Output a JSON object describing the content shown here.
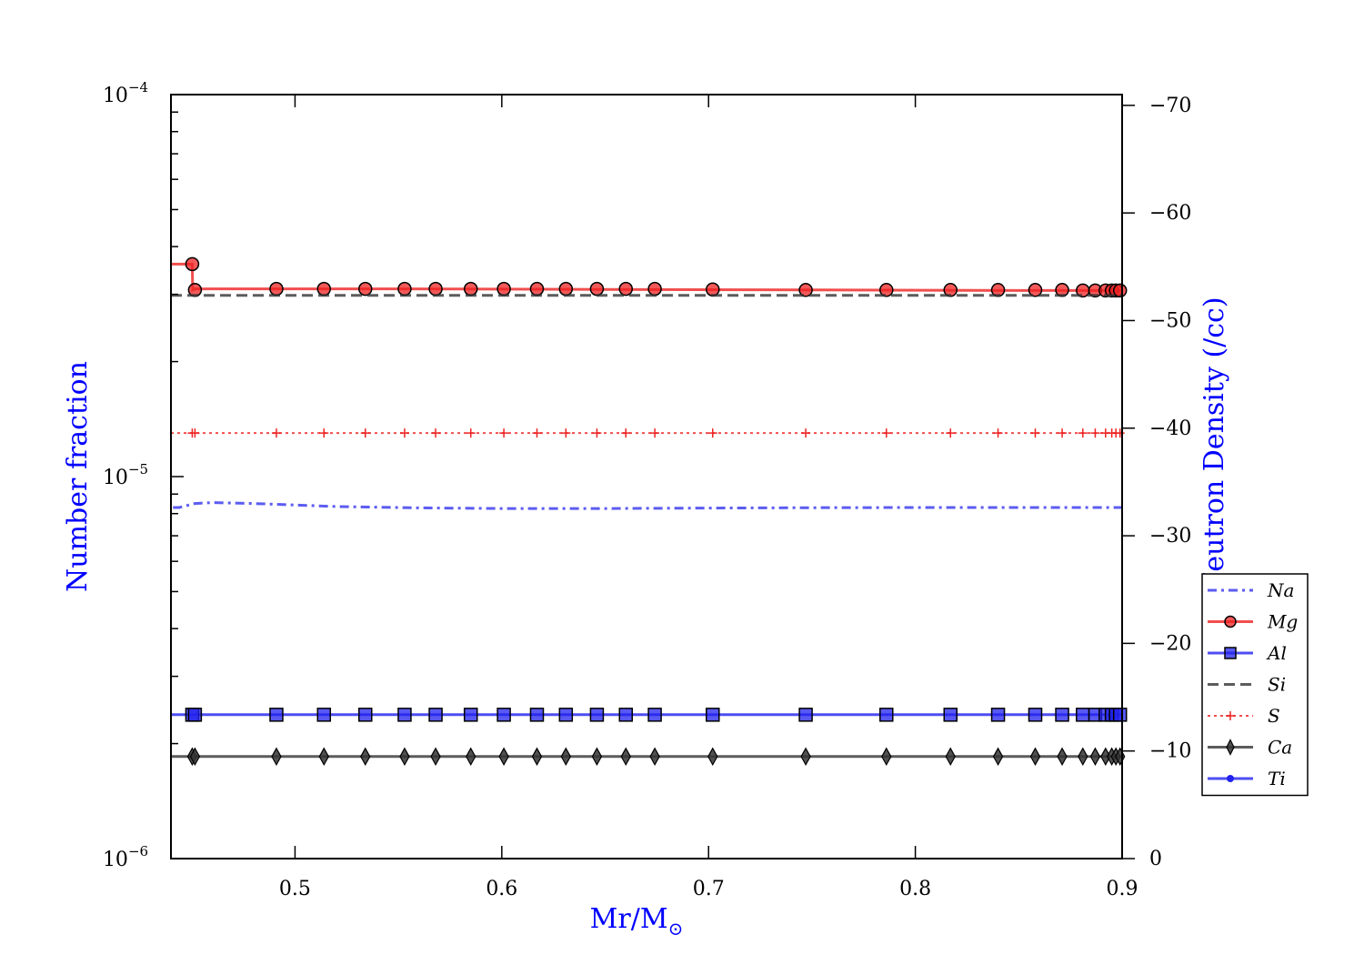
{
  "chart_data": {
    "type": "line",
    "xlabel": "Mr/M",
    "xlabel_sub": "⊙",
    "ylabel": "Number fraction",
    "ylabel_right": "Log Neutron Density (/cc)",
    "axis_label_color": "#0000ff",
    "xlim": [
      0.44,
      0.9
    ],
    "ylim": [
      1e-06,
      0.0001
    ],
    "yscale": "log",
    "ylim_right": [
      0,
      -71
    ],
    "x_ticks": [
      {
        "v": 0.5,
        "label": "0.5"
      },
      {
        "v": 0.6,
        "label": "0.6"
      },
      {
        "v": 0.7,
        "label": "0.7"
      },
      {
        "v": 0.8,
        "label": "0.8"
      },
      {
        "v": 0.9,
        "label": "0.9"
      }
    ],
    "y_ticks": [
      {
        "v": 1e-06,
        "base": "10",
        "exp": "−6"
      },
      {
        "v": 1e-05,
        "base": "10",
        "exp": "−5"
      },
      {
        "v": 0.0001,
        "base": "10",
        "exp": "−4"
      }
    ],
    "y_right_ticks": [
      {
        "v": 0,
        "label": "0"
      },
      {
        "v": -10,
        "label": "−10"
      },
      {
        "v": -20,
        "label": "−20"
      },
      {
        "v": -30,
        "label": "−30"
      },
      {
        "v": -40,
        "label": "−40"
      },
      {
        "v": -50,
        "label": "−50"
      },
      {
        "v": -60,
        "label": "−60"
      },
      {
        "v": -70,
        "label": "−70"
      }
    ],
    "legend_position": "lower-right",
    "marker_x": [
      0.4503,
      0.4516,
      0.491,
      0.514,
      0.534,
      0.553,
      0.568,
      0.585,
      0.601,
      0.617,
      0.631,
      0.646,
      0.66,
      0.674,
      0.702,
      0.747,
      0.786,
      0.817,
      0.84,
      0.858,
      0.871,
      0.881,
      0.887,
      0.892,
      0.895,
      0.897,
      0.899
    ],
    "series": [
      {
        "name": "Na",
        "color": "#3333ee",
        "dash": "10,5,3,5",
        "width": 3,
        "marker": "none",
        "x": [
          0.441,
          0.444,
          0.4516,
          0.46,
          0.48,
          0.52,
          0.56,
          0.6,
          0.65,
          0.7,
          0.75,
          0.8,
          0.85,
          0.9
        ],
        "y": [
          8.3e-06,
          8.3e-06,
          8.5e-06,
          8.55e-06,
          8.5e-06,
          8.35e-06,
          8.28e-06,
          8.25e-06,
          8.25e-06,
          8.27e-06,
          8.29e-06,
          8.3e-06,
          8.3e-06,
          8.3e-06
        ]
      },
      {
        "name": "Mg",
        "color": "#ee2222",
        "dash": "",
        "width": 3,
        "marker": "circle",
        "x": [
          0.44,
          0.4503,
          0.4505,
          0.4516,
          0.55,
          0.65,
          0.75,
          0.85,
          0.9
        ],
        "y": [
          3.6e-05,
          3.6e-05,
          3.08e-05,
          3.1e-05,
          3.1e-05,
          3.09e-05,
          3.08e-05,
          3.07e-05,
          3.07e-05
        ],
        "marker_y": [
          3.6e-05,
          3.08e-05,
          3.1e-05,
          3.1e-05,
          3.1e-05,
          3.1e-05,
          3.1e-05,
          3.1e-05,
          3.1e-05,
          3.1e-05,
          3.1e-05,
          3.1e-05,
          3.1e-05,
          3.1e-05,
          3.09e-05,
          3.08e-05,
          3.08e-05,
          3.08e-05,
          3.08e-05,
          3.08e-05,
          3.08e-05,
          3.07e-05,
          3.07e-05,
          3.07e-05,
          3.07e-05,
          3.07e-05,
          3.07e-05
        ]
      },
      {
        "name": "Al",
        "color": "#2222ee",
        "dash": "",
        "width": 3,
        "marker": "square",
        "x": [
          0.44,
          0.9
        ],
        "y": [
          2.38e-06,
          2.38e-06
        ],
        "marker_y_const": 2.38e-06
      },
      {
        "name": "Si",
        "color": "#333333",
        "dash": "12,6",
        "width": 3,
        "marker": "none",
        "x": [
          0.44,
          0.9
        ],
        "y": [
          2.98e-05,
          2.98e-05
        ]
      },
      {
        "name": "S",
        "color": "#ee2222",
        "dash": "3,4",
        "width": 2,
        "marker": "plus",
        "x": [
          0.44,
          0.9
        ],
        "y": [
          1.3e-05,
          1.3e-05
        ],
        "marker_y_const": 1.3e-05
      },
      {
        "name": "Ca",
        "color": "#333333",
        "dash": "",
        "width": 3,
        "marker": "diamond",
        "x": [
          0.44,
          0.9
        ],
        "y": [
          1.85e-06,
          1.85e-06
        ],
        "marker_y_const": 1.85e-06
      },
      {
        "name": "Ti",
        "color": "#2222ee",
        "dash": "",
        "width": 3,
        "marker": "dot",
        "x": [],
        "y": []
      }
    ]
  }
}
